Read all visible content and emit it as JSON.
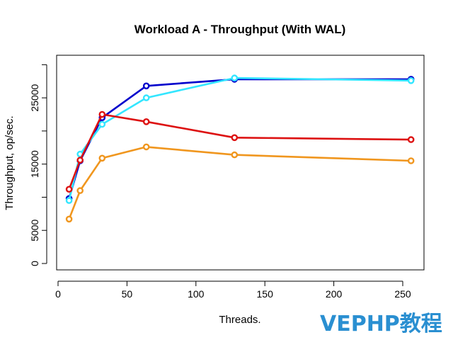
{
  "chart_data": {
    "type": "line",
    "title": "Workload A - Throughput (With WAL)",
    "xlabel": "Threads.",
    "ylabel": "Throughput, op/sec.",
    "xlim": [
      0,
      264
    ],
    "ylim": [
      0,
      30000
    ],
    "xticks": [
      0,
      50,
      100,
      150,
      200,
      250
    ],
    "yticks": [
      0,
      5000,
      15000,
      25000
    ],
    "grid": false,
    "legend": "none",
    "series": [
      {
        "color": "#0000cc",
        "x": [
          8,
          16,
          32,
          64,
          128,
          256
        ],
        "y": [
          9800,
          15500,
          22000,
          26800,
          27800,
          27800
        ]
      },
      {
        "color": "#33e6ff",
        "x": [
          8,
          16,
          32,
          64,
          128,
          256
        ],
        "y": [
          9500,
          16500,
          21000,
          25000,
          28000,
          27600
        ]
      },
      {
        "color": "#dd1111",
        "x": [
          8,
          16,
          32,
          64,
          128,
          256
        ],
        "y": [
          11200,
          15600,
          22500,
          21400,
          19000,
          18700
        ]
      },
      {
        "color": "#f0961e",
        "x": [
          8,
          16,
          32,
          64,
          128,
          256
        ],
        "y": [
          6700,
          11000,
          15900,
          17600,
          16400,
          15500
        ]
      }
    ]
  },
  "watermark": "VEPHP教程"
}
